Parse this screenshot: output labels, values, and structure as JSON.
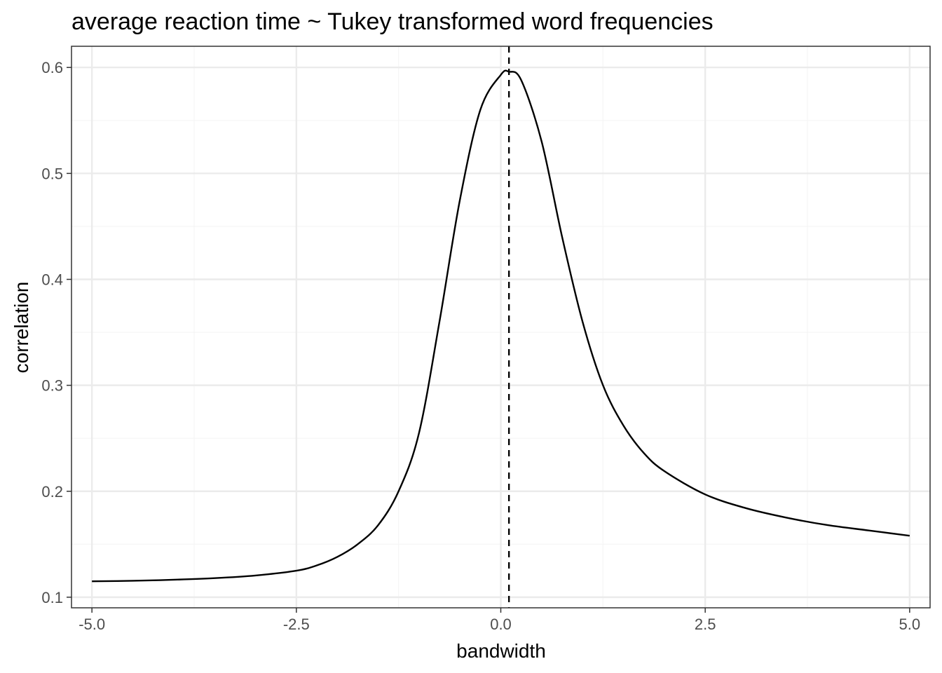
{
  "chart_data": {
    "type": "line",
    "title": "average reaction time ~ Tukey transformed word frequencies",
    "xlabel": "bandwidth",
    "ylabel": "correlation",
    "xlim": [
      -5.25,
      5.25
    ],
    "ylim": [
      0.09,
      0.62
    ],
    "x_ticks": [
      -5.0,
      -2.5,
      0.0,
      2.5,
      5.0
    ],
    "x_tick_labels": [
      "-5.0",
      "-2.5",
      "0.0",
      "2.5",
      "5.0"
    ],
    "y_ticks": [
      0.1,
      0.2,
      0.3,
      0.4,
      0.5,
      0.6
    ],
    "y_tick_labels": [
      "0.1",
      "0.2",
      "0.3",
      "0.4",
      "0.5",
      "0.6"
    ],
    "grid": true,
    "theme": "bw",
    "reference_line": {
      "type": "vertical",
      "style": "dashed",
      "x": 0.1
    },
    "series": [
      {
        "x": [
          -5.0,
          -4.5,
          -4.0,
          -3.5,
          -3.0,
          -2.5,
          -2.25,
          -2.0,
          -1.75,
          -1.5,
          -1.25,
          -1.0,
          -0.75,
          -0.5,
          -0.25,
          0.0,
          0.1,
          0.25,
          0.5,
          0.75,
          1.0,
          1.25,
          1.5,
          1.75,
          2.0,
          2.5,
          3.0,
          3.5,
          4.0,
          4.5,
          5.0
        ],
        "y": [
          0.115,
          0.1155,
          0.1165,
          0.118,
          0.1205,
          0.125,
          0.13,
          0.138,
          0.15,
          0.168,
          0.2,
          0.255,
          0.36,
          0.475,
          0.56,
          0.593,
          0.596,
          0.588,
          0.53,
          0.44,
          0.36,
          0.3,
          0.262,
          0.236,
          0.219,
          0.197,
          0.184,
          0.175,
          0.168,
          0.163,
          0.158
        ],
        "color": "#000000"
      }
    ],
    "colors": {
      "panel_border": "#333333",
      "grid_major": "#ebebeb",
      "grid_minor": "#f5f5f5",
      "line": "#000000"
    }
  }
}
